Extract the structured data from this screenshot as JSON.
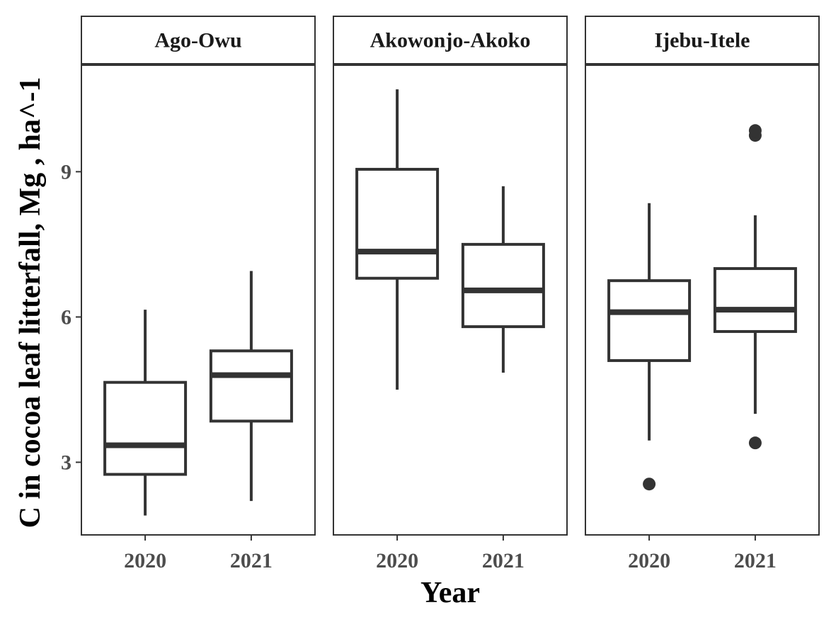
{
  "chart_data": {
    "type": "boxplot",
    "xlabel": "Year",
    "ylabel": "C in cocoa leaf litterfall, Mg , ha^-1",
    "ylim": [
      1.5,
      11.2
    ],
    "yticks": [
      3,
      6,
      9
    ],
    "categories": [
      "2020",
      "2021"
    ],
    "grid": false,
    "colors": {
      "box": "#333333",
      "background": "#ffffff",
      "strip": "#ffffff"
    },
    "panels": [
      {
        "name": "Ago-Owu",
        "boxes": [
          {
            "x": "2020",
            "whisker_low": 1.9,
            "q1": 2.75,
            "median": 3.35,
            "q3": 4.65,
            "whisker_high": 6.15,
            "outliers": []
          },
          {
            "x": "2021",
            "whisker_low": 2.2,
            "q1": 3.85,
            "median": 4.8,
            "q3": 5.3,
            "whisker_high": 6.95,
            "outliers": []
          }
        ]
      },
      {
        "name": "Akowonjo-Akoko",
        "boxes": [
          {
            "x": "2020",
            "whisker_low": 4.5,
            "q1": 6.8,
            "median": 7.35,
            "q3": 9.05,
            "whisker_high": 10.7,
            "outliers": []
          },
          {
            "x": "2021",
            "whisker_low": 4.85,
            "q1": 5.8,
            "median": 6.55,
            "q3": 7.5,
            "whisker_high": 8.7,
            "outliers": []
          }
        ]
      },
      {
        "name": "Ijebu-Itele",
        "boxes": [
          {
            "x": "2020",
            "whisker_low": 3.45,
            "q1": 5.1,
            "median": 6.1,
            "q3": 6.75,
            "whisker_high": 8.35,
            "outliers": [
              2.55
            ]
          },
          {
            "x": "2021",
            "whisker_low": 4.0,
            "q1": 5.7,
            "median": 6.15,
            "q3": 7.0,
            "whisker_high": 8.1,
            "outliers": [
              3.4,
              9.75,
              9.85
            ]
          }
        ]
      }
    ]
  }
}
